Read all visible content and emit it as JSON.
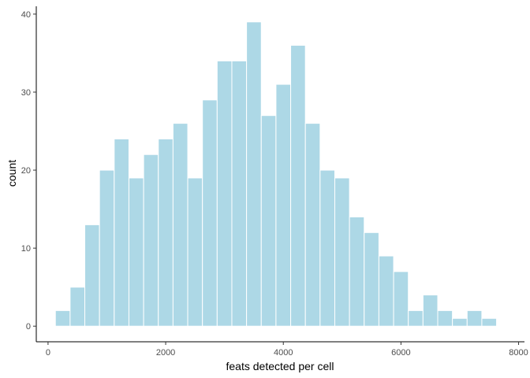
{
  "chart_data": {
    "type": "bar",
    "title": "",
    "xlabel": "feats detected per cell",
    "ylabel": "count",
    "xlim": [
      -200,
      8100
    ],
    "ylim": [
      -2,
      41
    ],
    "xticks": [
      0,
      2000,
      4000,
      6000,
      8000
    ],
    "xtick_labels": [
      "0",
      "2000",
      "4000",
      "6000",
      "8000"
    ],
    "yticks": [
      0,
      10,
      20,
      30,
      40
    ],
    "ytick_labels": [
      "0",
      "10",
      "20",
      "30",
      "40"
    ],
    "grid": false,
    "bin_width": 250,
    "bins": [
      {
        "start": 125,
        "end": 375,
        "count": 2
      },
      {
        "start": 375,
        "end": 625,
        "count": 5
      },
      {
        "start": 625,
        "end": 875,
        "count": 13
      },
      {
        "start": 875,
        "end": 1125,
        "count": 20
      },
      {
        "start": 1125,
        "end": 1375,
        "count": 24
      },
      {
        "start": 1375,
        "end": 1625,
        "count": 19
      },
      {
        "start": 1625,
        "end": 1875,
        "count": 22
      },
      {
        "start": 1875,
        "end": 2125,
        "count": 24
      },
      {
        "start": 2125,
        "end": 2375,
        "count": 26
      },
      {
        "start": 2375,
        "end": 2625,
        "count": 19
      },
      {
        "start": 2625,
        "end": 2875,
        "count": 29
      },
      {
        "start": 2875,
        "end": 3125,
        "count": 34
      },
      {
        "start": 3125,
        "end": 3375,
        "count": 34
      },
      {
        "start": 3375,
        "end": 3625,
        "count": 39
      },
      {
        "start": 3625,
        "end": 3875,
        "count": 27
      },
      {
        "start": 3875,
        "end": 4125,
        "count": 31
      },
      {
        "start": 4125,
        "end": 4375,
        "count": 36
      },
      {
        "start": 4375,
        "end": 4625,
        "count": 26
      },
      {
        "start": 4625,
        "end": 4875,
        "count": 20
      },
      {
        "start": 4875,
        "end": 5125,
        "count": 19
      },
      {
        "start": 5125,
        "end": 5375,
        "count": 14
      },
      {
        "start": 5375,
        "end": 5625,
        "count": 12
      },
      {
        "start": 5625,
        "end": 5875,
        "count": 9
      },
      {
        "start": 5875,
        "end": 6125,
        "count": 7
      },
      {
        "start": 6125,
        "end": 6375,
        "count": 2
      },
      {
        "start": 6375,
        "end": 6625,
        "count": 4
      },
      {
        "start": 6625,
        "end": 6875,
        "count": 2
      },
      {
        "start": 6875,
        "end": 7125,
        "count": 1
      },
      {
        "start": 7125,
        "end": 7375,
        "count": 2
      },
      {
        "start": 7375,
        "end": 7625,
        "count": 1
      }
    ],
    "colors": {
      "bar_fill": "#add8e6",
      "bar_stroke": "#ffffff",
      "axis_line": "#000000",
      "tick_text": "#4d4d4d"
    }
  }
}
